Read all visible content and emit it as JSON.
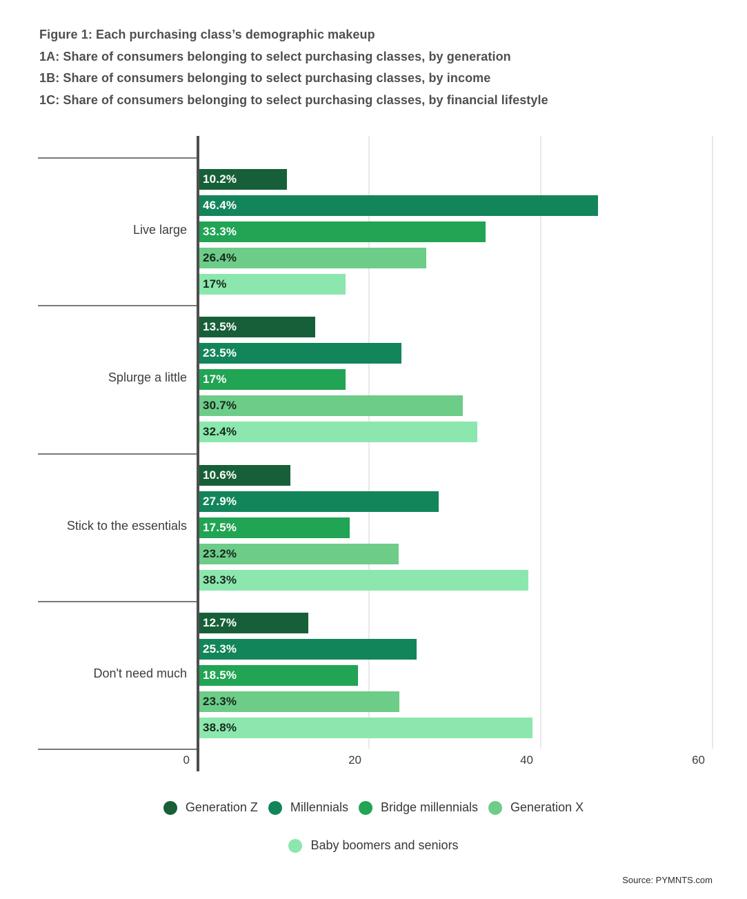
{
  "title": {
    "line1": "Figure 1: Each purchasing class’s demographic makeup",
    "line2": "1A: Share of consumers belonging to select purchasing classes, by generation",
    "line3": "1B: Share of consumers belonging to select purchasing classes, by income",
    "line4": "1C: Share of consumers belonging to select purchasing classes, by financial lifestyle"
  },
  "chart_data": {
    "type": "bar",
    "orientation": "horizontal",
    "title": "Figure 1: Each purchasing class’s demographic makeup",
    "categories": [
      "Live large",
      "Splurge a little",
      "Stick to the essentials",
      "Don't need much"
    ],
    "series": [
      {
        "name": "Generation Z",
        "color": "#175f38",
        "label_color": "#ffffff",
        "values": [
          10.2,
          13.5,
          10.6,
          12.7
        ]
      },
      {
        "name": "Millennials",
        "color": "#13855a",
        "label_color": "#ffffff",
        "values": [
          46.4,
          23.5,
          27.9,
          25.3
        ]
      },
      {
        "name": "Bridge millennials",
        "color": "#21a453",
        "label_color": "#ffffff",
        "values": [
          33.3,
          17.0,
          17.5,
          18.5
        ]
      },
      {
        "name": "Generation X",
        "color": "#6ecc89",
        "label_color": "#16291d",
        "values": [
          26.4,
          30.7,
          23.2,
          23.3
        ]
      },
      {
        "name": "Baby boomers and seniors",
        "color": "#8ce7ae",
        "label_color": "#16291d",
        "values": [
          17.0,
          32.4,
          38.3,
          38.8
        ]
      }
    ],
    "value_suffix": "%",
    "x_axis": {
      "ticks": [
        0,
        20,
        40,
        60
      ],
      "labels": [
        "0",
        "20",
        "40",
        "60"
      ],
      "range": [
        0,
        60.5
      ]
    },
    "grid": true,
    "legend_position": "bottom",
    "colors": {
      "axis_line": "#4e4e4e",
      "gridline": "#e8e8e8",
      "category_divider": "#787878",
      "title_text": "#4f4f4f",
      "label_text": "#3d3d3d"
    }
  },
  "source": {
    "label": "Source: PYMNTS.com"
  }
}
